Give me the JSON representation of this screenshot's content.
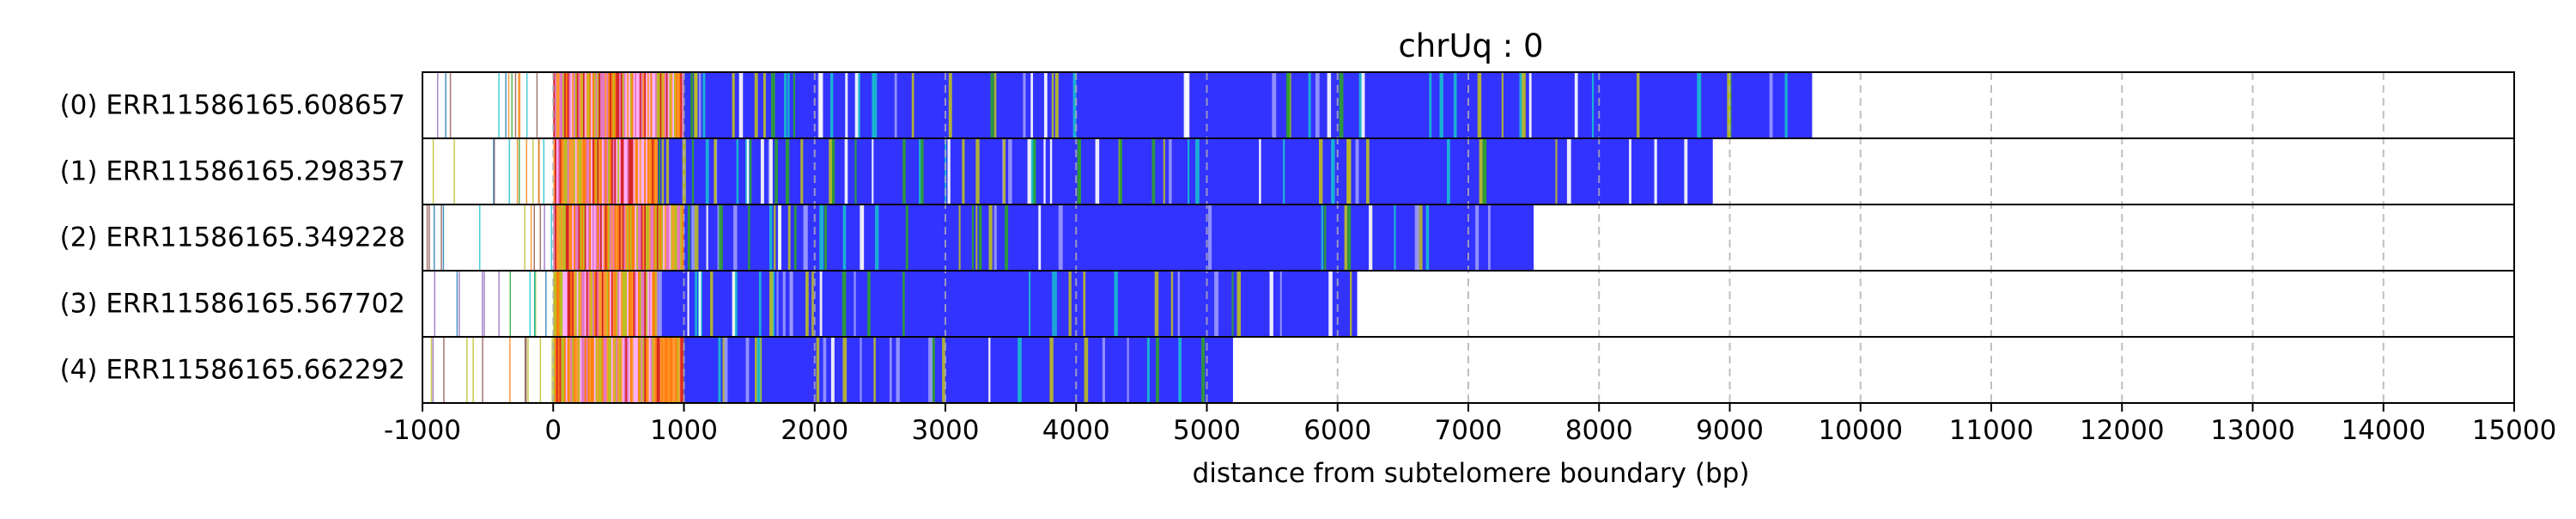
{
  "chart_data": {
    "type": "bar",
    "title": "chrUq : 0",
    "xlabel": "distance from subtelomere boundary (bp)",
    "ylabel": "",
    "xlim": [
      -1000,
      15000
    ],
    "xticks": [
      -1000,
      0,
      1000,
      2000,
      3000,
      4000,
      5000,
      6000,
      7000,
      8000,
      9000,
      10000,
      11000,
      12000,
      13000,
      14000,
      15000
    ],
    "grid": "vertical dashed",
    "colors": {
      "telomere_repeat": "#3333ff",
      "variant_green": "#2ca02c",
      "variant_orange": "#ff7f0e",
      "variant_red": "#d62728",
      "variant_pink": "#e377c2",
      "variant_cyan": "#17becf",
      "variant_olive": "#bcbd22"
    },
    "reads": [
      {
        "label": "(0) ERR11586165.608657",
        "start": -1000,
        "end": 9630,
        "telomere_start": 1000
      },
      {
        "label": "(1) ERR11586165.298357",
        "start": -1000,
        "end": 8870,
        "telomere_start": 800
      },
      {
        "label": "(2) ERR11586165.349228",
        "start": -1000,
        "end": 7500,
        "telomere_start": 1000
      },
      {
        "label": "(3) ERR11586165.567702",
        "start": -1000,
        "end": 6150,
        "telomere_start": 800
      },
      {
        "label": "(4) ERR11586165.662292",
        "start": -1000,
        "end": 5200,
        "telomere_start": 1000
      }
    ]
  }
}
